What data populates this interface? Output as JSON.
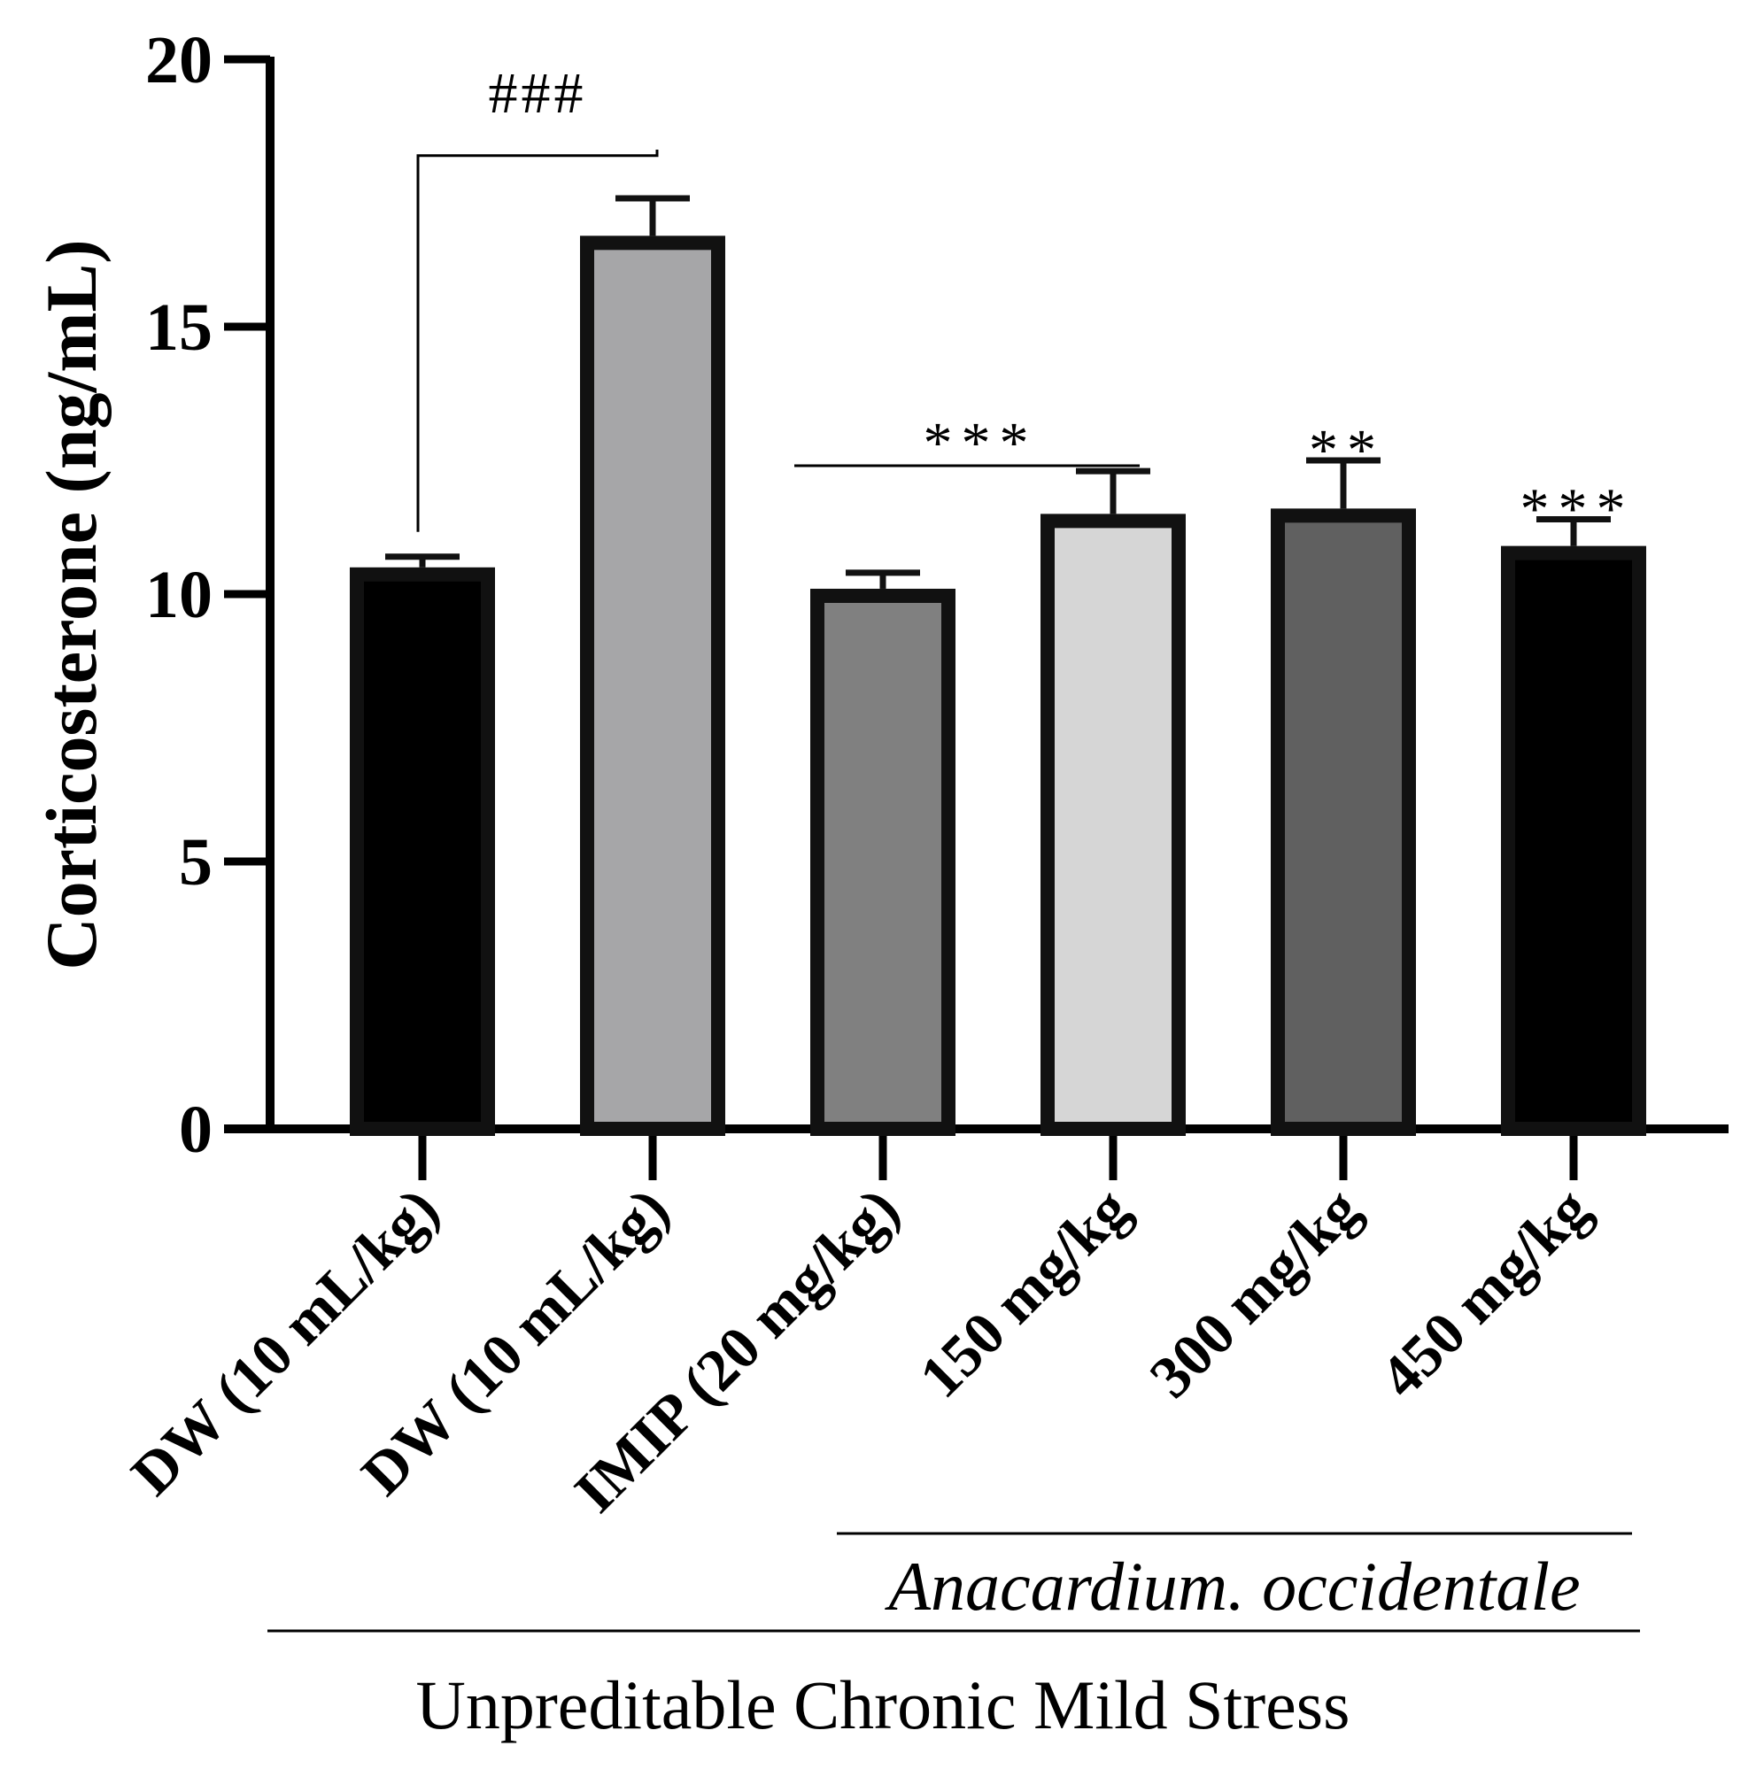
{
  "chart_data": {
    "type": "bar",
    "title": "",
    "xlabel": "",
    "ylabel": "Corticosterone (ng/mL)",
    "ylim": [
      0,
      20
    ],
    "yticks": [
      0,
      5,
      10,
      15,
      20
    ],
    "categories": [
      "DW (10 mL/kg)",
      "DW (10 mL/kg)",
      "IMIP (20 mg/kg)",
      "150 mg/kg",
      "300 mg/kg",
      "450 mg/kg"
    ],
    "values": [
      10.5,
      16.7,
      10.1,
      11.5,
      11.6,
      10.9
    ],
    "errors": [
      0.2,
      0.7,
      0.3,
      0.8,
      0.9,
      0.5
    ],
    "fill_colors": [
      "#000000",
      "#a6a6a8",
      "#808080",
      "#d6d6d6",
      "#606060",
      "#000000"
    ],
    "annotations": [
      {
        "text": "###",
        "type": "bracket",
        "from": 0,
        "to": 1,
        "y": 19.5
      },
      {
        "text": "***",
        "type": "line",
        "from": 2,
        "to": 3,
        "y": 12.8
      },
      {
        "text": "**",
        "type": "above",
        "bar": 4
      },
      {
        "text": "***",
        "type": "above",
        "bar": 5
      }
    ],
    "groups": [
      {
        "label": "Anacardium. occidentale",
        "from": 3,
        "to": 5,
        "italic": true
      },
      {
        "label": "Unpreditable Chronic Mild Stress",
        "from": 0,
        "to": 5,
        "italic": false
      }
    ]
  }
}
